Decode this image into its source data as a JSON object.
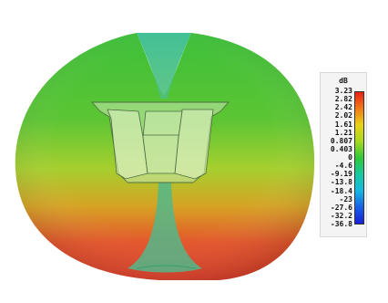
{
  "legend": {
    "unit": "dB",
    "ticks": [
      "3.23",
      "2.82",
      "2.42",
      "2.02",
      "1.61",
      "1.21",
      "0.807",
      "0.403",
      "0",
      "-4.6",
      "-9.19",
      "-13.8",
      "-18.4",
      "-23",
      "-27.6",
      "-32.2",
      "-36.8"
    ],
    "gradient_colors": [
      "#e8201a",
      "#f07a18",
      "#e8d21a",
      "#a8d820",
      "#30c83a",
      "#18c8a0",
      "#18b8e0",
      "#1860e8",
      "#1a20d8"
    ]
  },
  "pattern": {
    "top_color": "#36c034",
    "middle_color": "#a6ce2c",
    "bottom_color": "#e35a22",
    "null_color": "#2ab887"
  }
}
